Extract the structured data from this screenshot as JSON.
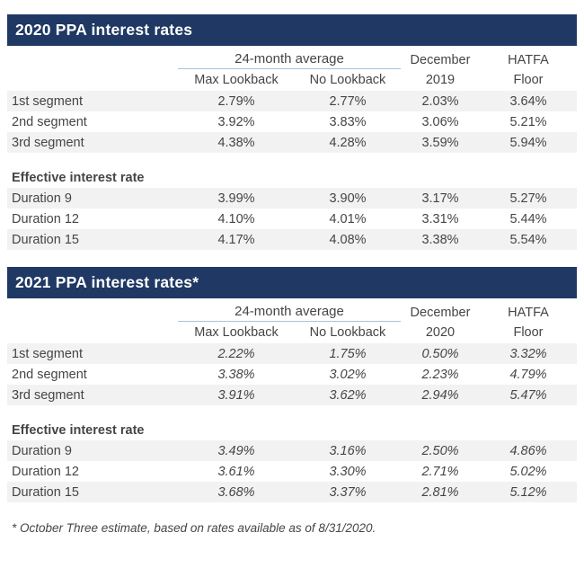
{
  "page": {
    "footnote": "* October Three estimate, based on rates available as of 8/31/2020.",
    "colors": {
      "header_bg": "#1F3864",
      "alt_row_bg": "#F2F2F2",
      "group_underline": "#A9C4DC",
      "text": "#454545"
    }
  },
  "tables": [
    {
      "dec_top": "December",
      "dec_bottom": "2019",
      "hatfa_top": "HATFA",
      "hatfa_bottom": "Floor"
    },
    {
      "dec_top": "December",
      "dec_bottom": "2020",
      "hatfa_top": "HATFA",
      "hatfa_bottom": "Floor"
    }
  ],
  "chart_data": [
    {
      "type": "table",
      "title": "2020 PPA interest rates",
      "column_group": "24-month average",
      "column_group_spans": [
        "Max Lookback",
        "No Lookback"
      ],
      "columns": [
        "Max Lookback",
        "No Lookback",
        "December 2019",
        "HATFA Floor"
      ],
      "rows": [
        {
          "label": "1st segment",
          "values": [
            "2.79%",
            "2.77%",
            "2.03%",
            "3.64%"
          ]
        },
        {
          "label": "2nd segment",
          "values": [
            "3.92%",
            "3.83%",
            "3.06%",
            "5.21%"
          ]
        },
        {
          "label": "3rd segment",
          "values": [
            "4.38%",
            "4.28%",
            "3.59%",
            "5.94%"
          ]
        },
        {
          "label": "Effective interest rate",
          "section": true
        },
        {
          "label": "Duration 9",
          "values": [
            "3.99%",
            "3.90%",
            "3.17%",
            "5.27%"
          ]
        },
        {
          "label": "Duration 12",
          "values": [
            "4.10%",
            "4.01%",
            "3.31%",
            "5.44%"
          ]
        },
        {
          "label": "Duration 15",
          "values": [
            "4.17%",
            "4.08%",
            "3.38%",
            "5.54%"
          ]
        }
      ]
    },
    {
      "type": "table",
      "title": "2021 PPA interest rates*",
      "column_group": "24-month average",
      "column_group_spans": [
        "Max Lookback",
        "No Lookback"
      ],
      "columns": [
        "Max Lookback",
        "No Lookback",
        "December 2020",
        "HATFA Floor"
      ],
      "rows": [
        {
          "label": "1st segment",
          "values": [
            "2.22%",
            "1.75%",
            "0.50%",
            "3.32%"
          ]
        },
        {
          "label": "2nd segment",
          "values": [
            "3.38%",
            "3.02%",
            "2.23%",
            "4.79%"
          ]
        },
        {
          "label": "3rd segment",
          "values": [
            "3.91%",
            "3.62%",
            "2.94%",
            "5.47%"
          ]
        },
        {
          "label": "Effective interest rate",
          "section": true
        },
        {
          "label": "Duration 9",
          "values": [
            "3.49%",
            "3.16%",
            "2.50%",
            "4.86%"
          ]
        },
        {
          "label": "Duration 12",
          "values": [
            "3.61%",
            "3.30%",
            "2.71%",
            "5.02%"
          ]
        },
        {
          "label": "Duration 15",
          "values": [
            "3.68%",
            "3.37%",
            "2.81%",
            "5.12%"
          ]
        }
      ]
    }
  ]
}
